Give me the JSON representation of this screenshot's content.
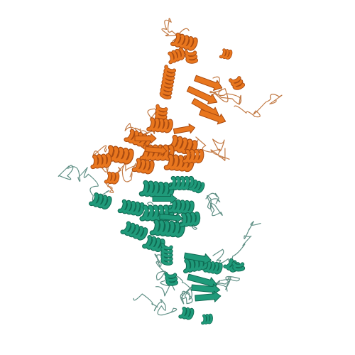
{
  "figure": {
    "kind": "protein-ribbon-structure",
    "background_color": "#ffffff",
    "chains": [
      {
        "name": "chain-a",
        "color": "#e8761e",
        "shade": "#a84a10",
        "coil_color": "#c27a45"
      },
      {
        "name": "chain-b",
        "color": "#1f9a7a",
        "shade": "#0f6a52",
        "coil_color": "#5f8f85"
      }
    ]
  }
}
